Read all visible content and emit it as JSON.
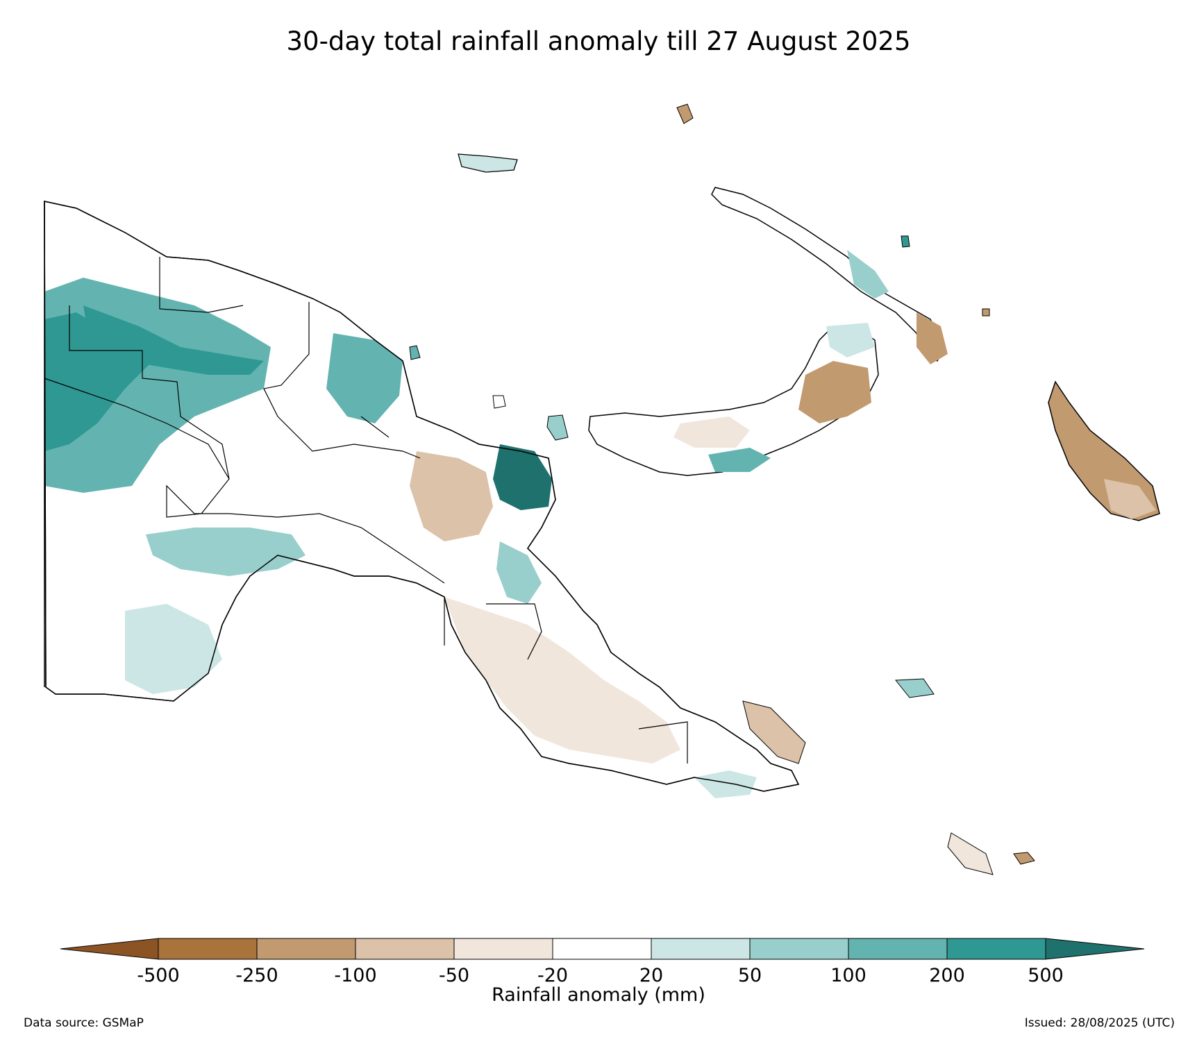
{
  "title": "30-day total rainfall anomaly till 27 August 2025",
  "colorbar": {
    "label": "Rainfall anomaly (mm)",
    "ticks": [
      "-500",
      "-250",
      "-100",
      "-50",
      "-20",
      "20",
      "50",
      "100",
      "200",
      "500"
    ],
    "bins": [
      {
        "from": null,
        "to": -500,
        "color": "#8c5425"
      },
      {
        "from": -500,
        "to": -250,
        "color": "#a9733c"
      },
      {
        "from": -250,
        "to": -100,
        "color": "#c29a6f"
      },
      {
        "from": -100,
        "to": -50,
        "color": "#dbc2a8"
      },
      {
        "from": -50,
        "to": -20,
        "color": "#f0e6dc"
      },
      {
        "from": -20,
        "to": 20,
        "color": "#ffffff"
      },
      {
        "from": 20,
        "to": 50,
        "color": "#cbe6e4"
      },
      {
        "from": 50,
        "to": 100,
        "color": "#98cecb"
      },
      {
        "from": 100,
        "to": 200,
        "color": "#63b4b0"
      },
      {
        "from": 200,
        "to": 500,
        "color": "#2f9893"
      },
      {
        "from": 500,
        "to": null,
        "color": "#1f716e"
      }
    ]
  },
  "footer": {
    "source": "Data source: GSMaP",
    "issued": "Issued: 28/08/2025 (UTC)"
  }
}
